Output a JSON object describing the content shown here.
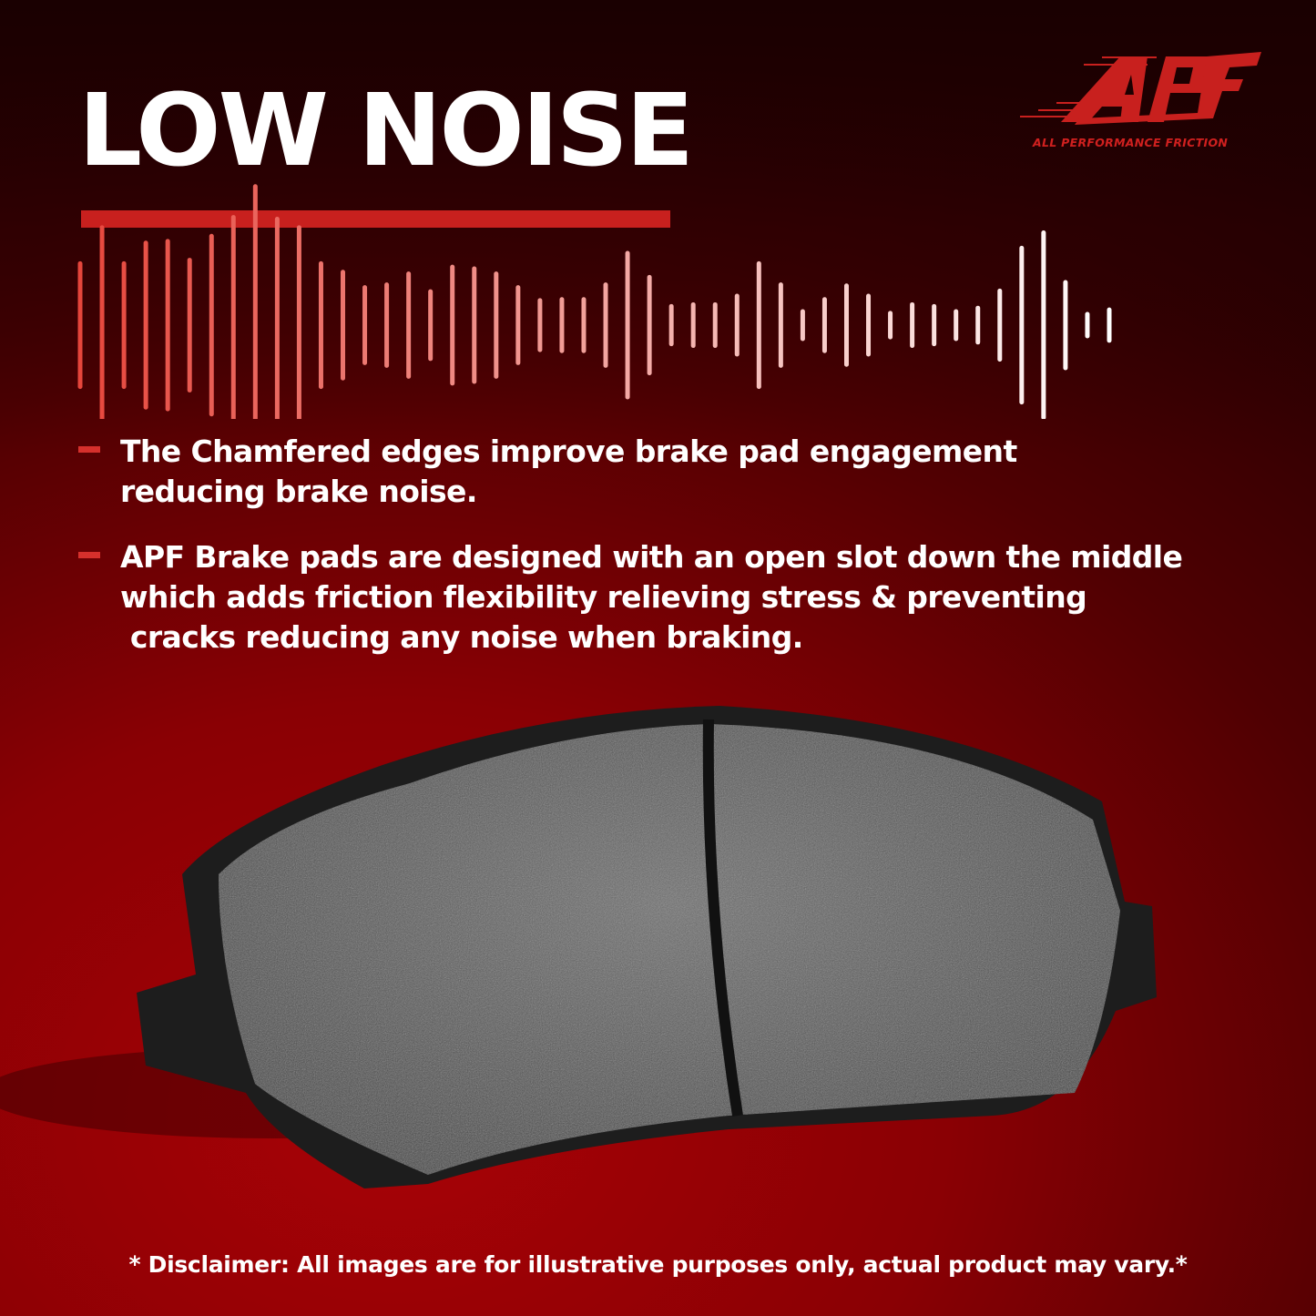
{
  "headline": "LOW NOISE",
  "brand": {
    "logo_text": "APF",
    "tagline": "ALL PERFORMANCE FRICTION",
    "color": "#c8201e"
  },
  "bullets": [
    {
      "text": "The Chamfered edges improve brake pad engagement\nreducing brake noise."
    },
    {
      "text": "APF Brake pads are designed with an open slot down the middle\nwhich adds friction flexibility relieving stress & preventing\n cracks reducing any noise when braking."
    }
  ],
  "disclaimer": "* Disclaimer: All images are for illustrative purposes only, actual product may vary.*",
  "colors": {
    "accent": "#c8201e",
    "background": "#8a0004",
    "text": "#ffffff"
  }
}
